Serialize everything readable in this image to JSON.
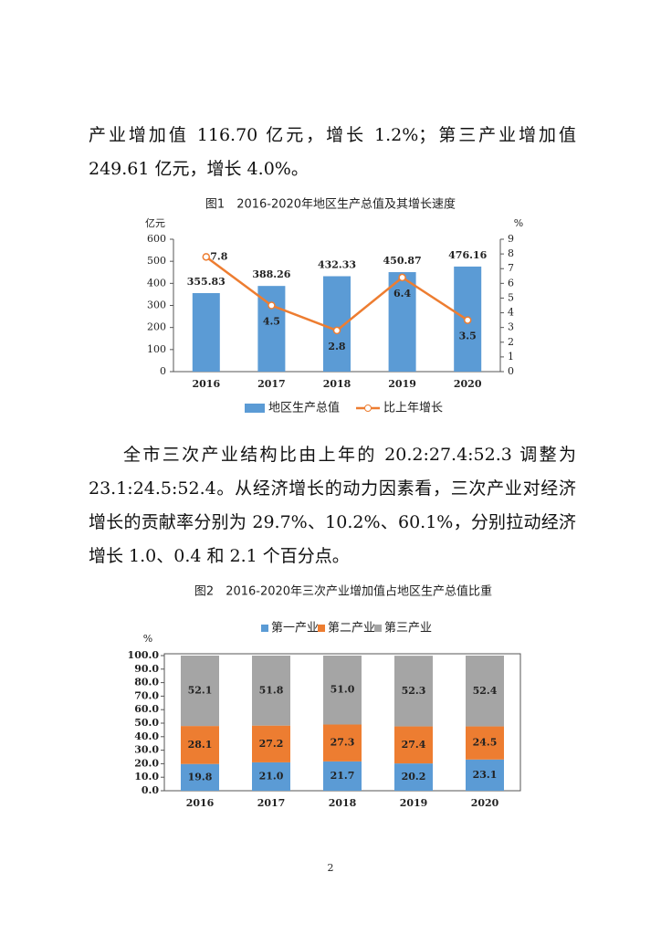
{
  "paragraphs": [
    "产业增加值 116.70 亿元，增长 1.2%；第三产业增加值 249.61 亿元，增长 4.0%。",
    "全市三次产业结构比由上年的 20.2:27.4:52.3 调整为 23.1:24.5:52.4。从经济增长的动力因素看，三次产业对经济增长的贡献率分别为 29.7%、10.2%、60.1%，分别拉动经济增长 1.0、0.4 和 2.1 个百分点。"
  ],
  "chart_data": [
    {
      "type": "combo",
      "title": "图1　2016-2020年地区生产总值及其增长速度",
      "y_label": "亿元",
      "y2_label": "%",
      "categories": [
        "2016",
        "2017",
        "2018",
        "2019",
        "2020"
      ],
      "series": [
        {
          "name": "地区生产总值",
          "color": "#5b9bd5",
          "values": [
            355.83,
            388.26,
            432.33,
            450.87,
            476.16
          ]
        },
        {
          "name": "比上年增长",
          "color": "#ed7d31",
          "axis": "y2",
          "values": [
            7.8,
            4.5,
            2.8,
            6.4,
            3.5
          ]
        }
      ],
      "ylim": [
        0,
        600
      ],
      "yticks": [
        0,
        100,
        200,
        300,
        400,
        500,
        600
      ],
      "y2lim": [
        0,
        9
      ],
      "y2ticks": [
        0,
        1,
        2,
        3,
        4,
        5,
        6,
        7,
        8,
        9
      ]
    },
    {
      "type": "stacked",
      "title": "图2　2016-2020年三次产业增加值占地区生产总值比重",
      "y_label": "%",
      "categories": [
        "2016",
        "2017",
        "2018",
        "2019",
        "2020"
      ],
      "series": [
        {
          "name": "第一产业",
          "color": "#5b9bd5",
          "values": [
            19.8,
            21.0,
            21.7,
            20.2,
            23.1
          ],
          "value_labels": [
            "19.8",
            "21.0",
            "21.7",
            "20.2",
            "23.1"
          ]
        },
        {
          "name": "第二产业",
          "color": "#ed7d31",
          "values": [
            28.1,
            27.2,
            27.3,
            27.4,
            24.5
          ],
          "value_labels": [
            "28.1",
            "27.2",
            "27.3",
            "27.4",
            "24.5"
          ]
        },
        {
          "name": "第三产业",
          "color": "#a5a5a5",
          "values": [
            52.1,
            51.8,
            51.0,
            52.3,
            52.4
          ],
          "value_labels": [
            "52.1",
            "51.8",
            "51.0",
            "52.3",
            "52.4"
          ]
        }
      ],
      "ylim": [
        0,
        100
      ],
      "yticks": [
        {
          "value": 0,
          "label": "0.0"
        },
        {
          "value": 10,
          "label": "10.0"
        },
        {
          "value": 20,
          "label": "20.0"
        },
        {
          "value": 30,
          "label": "30.0"
        },
        {
          "value": 40,
          "label": "40.0"
        },
        {
          "value": 50,
          "label": "50.0"
        },
        {
          "value": 60,
          "label": "60.0"
        },
        {
          "value": 70,
          "label": "70.0"
        },
        {
          "value": 80,
          "label": "80.0"
        },
        {
          "value": 90,
          "label": "90.0"
        },
        {
          "value": 100,
          "label": "100.0"
        }
      ]
    }
  ],
  "page_number": "2"
}
